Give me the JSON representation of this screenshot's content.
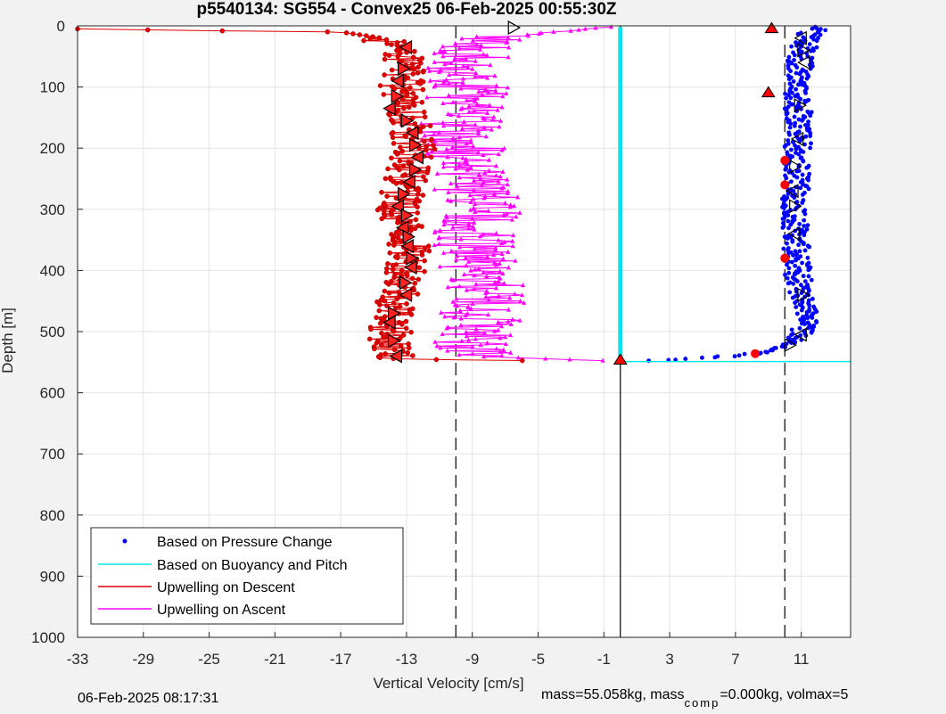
{
  "chart_data": {
    "type": "scatter",
    "title": "p5540134: SG554 - Convex25 06-Feb-2025 00:55:30Z",
    "xlabel": "Vertical Velocity [cm/s]",
    "ylabel": "Depth [m]",
    "xlim": [
      -33,
      14
    ],
    "ylim": [
      0,
      1000
    ],
    "y_reversed": true,
    "grid": true,
    "xticks": [
      "-33",
      "-29",
      "-25",
      "-21",
      "-17",
      "-13",
      "-9",
      "-5",
      "-1",
      "3",
      "7",
      "11"
    ],
    "yticks": [
      "0",
      "100",
      "200",
      "300",
      "400",
      "500",
      "600",
      "700",
      "800",
      "900",
      "1000"
    ],
    "legend_position": "bottom-left",
    "series": [
      {
        "name": "Based on Pressure Change",
        "color": "#0000ff",
        "marker": "dot",
        "profile": [
          [
            11.8,
            2
          ],
          [
            11.2,
            30
          ],
          [
            10.9,
            60
          ],
          [
            11.0,
            90
          ],
          [
            10.7,
            120
          ],
          [
            10.9,
            150
          ],
          [
            10.8,
            190
          ],
          [
            10.7,
            230
          ],
          [
            10.7,
            260
          ],
          [
            10.6,
            300
          ],
          [
            10.6,
            340
          ],
          [
            10.8,
            380
          ],
          [
            10.8,
            410
          ],
          [
            11.1,
            440
          ],
          [
            11.3,
            470
          ],
          [
            11.1,
            500
          ],
          [
            10.6,
            515
          ],
          [
            9.6,
            528
          ],
          [
            8.3,
            536
          ],
          [
            5.6,
            542
          ],
          [
            2.0,
            548
          ],
          [
            0.4,
            549
          ]
        ]
      },
      {
        "name": "Based on Buoyancy and Pitch",
        "color": "#00e5ee",
        "marker": "line",
        "x": [
          0.0,
          0.0,
          0.0,
          12.3,
          14.0
        ],
        "y": [
          2,
          549,
          549,
          549,
          549
        ]
      },
      {
        "name": "Upwelling on Descent",
        "color": "#e00000",
        "marker": "dot-line",
        "profile": [
          [
            -33.0,
            5
          ],
          [
            -25.0,
            8
          ],
          [
            -17.0,
            10
          ],
          [
            -14.5,
            20
          ],
          [
            -13.2,
            50
          ],
          [
            -13.3,
            100
          ],
          [
            -12.8,
            150
          ],
          [
            -12.5,
            200
          ],
          [
            -13.0,
            250
          ],
          [
            -13.5,
            300
          ],
          [
            -12.9,
            350
          ],
          [
            -12.9,
            400
          ],
          [
            -13.5,
            450
          ],
          [
            -14.0,
            500
          ],
          [
            -13.8,
            545
          ],
          [
            -4.0,
            548
          ]
        ]
      },
      {
        "name": "Upwelling on Ascent",
        "color": "#ff00ff",
        "marker": "triangle-line",
        "profile": [
          [
            -0.5,
            2
          ],
          [
            -8.0,
            20
          ],
          [
            -9.5,
            60
          ],
          [
            -9.2,
            100
          ],
          [
            -9.8,
            150
          ],
          [
            -9.5,
            200
          ],
          [
            -9.0,
            250
          ],
          [
            -8.5,
            300
          ],
          [
            -8.9,
            350
          ],
          [
            -8.5,
            400
          ],
          [
            -8.2,
            450
          ],
          [
            -8.8,
            500
          ],
          [
            -9.2,
            540
          ],
          [
            -1.0,
            548
          ]
        ]
      }
    ],
    "reference_lines": [
      {
        "orientation": "vertical",
        "x": -10,
        "style": "dashed",
        "color": "#000000"
      },
      {
        "orientation": "vertical",
        "x": 10,
        "style": "dashed",
        "color": "#000000"
      },
      {
        "orientation": "vertical",
        "x": 0,
        "style": "solid",
        "color": "#000000"
      }
    ],
    "highlight_markers": {
      "descent_triangles": [
        [
          -6.5,
          3
        ],
        [
          -13.0,
          35
        ],
        [
          -13.2,
          70
        ],
        [
          -13.5,
          90
        ],
        [
          -13.6,
          115
        ],
        [
          -14.0,
          135
        ],
        [
          -13.0,
          155
        ],
        [
          -12.6,
          175
        ],
        [
          -12.5,
          195
        ],
        [
          -12.3,
          215
        ],
        [
          -12.5,
          235
        ],
        [
          -12.8,
          255
        ],
        [
          -13.2,
          275
        ],
        [
          -13.5,
          295
        ],
        [
          -13.0,
          310
        ],
        [
          -13.2,
          330
        ],
        [
          -12.9,
          345
        ],
        [
          -12.9,
          360
        ],
        [
          -12.7,
          380
        ],
        [
          -12.7,
          395
        ],
        [
          -13.1,
          420
        ],
        [
          -13.0,
          440
        ],
        [
          -13.8,
          470
        ],
        [
          -14.0,
          485
        ],
        [
          -13.8,
          515
        ],
        [
          -13.6,
          540
        ]
      ],
      "red_triangles": [
        [
          9.2,
          5
        ],
        [
          9.0,
          110
        ],
        [
          0.0,
          547
        ]
      ],
      "pressure_triangles": [
        [
          11.0,
          20
        ],
        [
          11.1,
          40
        ],
        [
          11.2,
          60
        ],
        [
          10.9,
          130
        ],
        [
          10.8,
          185
        ],
        [
          10.6,
          230
        ],
        [
          10.5,
          270
        ],
        [
          10.6,
          295
        ],
        [
          10.6,
          340
        ],
        [
          11.1,
          440
        ],
        [
          11.0,
          505
        ],
        [
          10.3,
          522
        ]
      ],
      "red_dots": [
        [
          10.0,
          220
        ],
        [
          10.0,
          260
        ],
        [
          10.0,
          380
        ],
        [
          8.2,
          536
        ]
      ]
    }
  },
  "footer": {
    "timestamp": "06-Feb-2025 08:17:31",
    "mass_text": "mass=55.058kg, mass",
    "mass_subscript": "comp",
    "mass_rest": "=0.000kg, volmax=5"
  }
}
